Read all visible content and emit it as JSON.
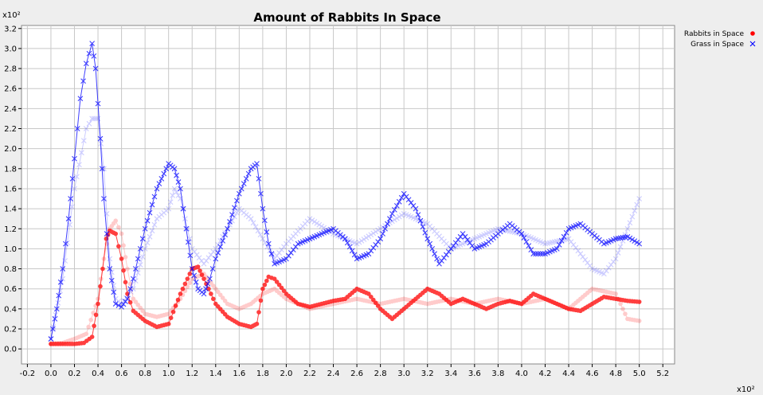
{
  "chart_data": {
    "type": "scatter",
    "title": "Amount of Rabbits In Space",
    "x_multiplier_label": "x10²",
    "y_multiplier_label": "x10²",
    "xlim": [
      -0.25,
      5.3
    ],
    "ylim": [
      -0.15,
      3.23
    ],
    "x_ticks": [
      "-0.2",
      "0.0",
      "0.2",
      "0.4",
      "0.6",
      "0.8",
      "1.0",
      "1.2",
      "1.4",
      "1.6",
      "1.8",
      "2.0",
      "2.2",
      "2.4",
      "2.6",
      "2.8",
      "3.0",
      "3.2",
      "3.4",
      "3.6",
      "3.8",
      "4.0",
      "4.2",
      "4.4",
      "4.6",
      "4.8",
      "5.0",
      "5.2"
    ],
    "y_ticks": [
      "0.0",
      "0.2",
      "0.4",
      "0.6",
      "0.8",
      "1.0",
      "1.2",
      "1.4",
      "1.6",
      "1.8",
      "2.0",
      "2.2",
      "2.4",
      "2.6",
      "2.8",
      "3.0",
      "3.2"
    ],
    "grid": true,
    "legend_position": "right",
    "series": [
      {
        "name": "Rabbits in Space",
        "color": "#ff0000",
        "marker": "circle",
        "x": [
          0,
          0.1,
          0.2,
          0.28,
          0.35,
          0.4,
          0.44,
          0.47,
          0.5,
          0.55,
          0.6,
          0.65,
          0.7,
          0.8,
          0.9,
          1.0,
          1.1,
          1.2,
          1.25,
          1.3,
          1.4,
          1.5,
          1.6,
          1.7,
          1.75,
          1.8,
          1.85,
          1.9,
          2.0,
          2.1,
          2.2,
          2.3,
          2.4,
          2.5,
          2.6,
          2.7,
          2.8,
          2.9,
          3.0,
          3.1,
          3.2,
          3.3,
          3.4,
          3.5,
          3.6,
          3.7,
          3.8,
          3.9,
          4.0,
          4.1,
          4.2,
          4.3,
          4.4,
          4.5,
          4.6,
          4.7,
          4.8,
          4.9,
          5.0
        ],
        "y": [
          0.05,
          0.05,
          0.05,
          0.06,
          0.12,
          0.45,
          0.8,
          1.1,
          1.18,
          1.15,
          0.9,
          0.55,
          0.38,
          0.28,
          0.22,
          0.25,
          0.55,
          0.8,
          0.82,
          0.7,
          0.45,
          0.32,
          0.25,
          0.22,
          0.25,
          0.6,
          0.72,
          0.7,
          0.55,
          0.45,
          0.42,
          0.45,
          0.48,
          0.5,
          0.6,
          0.55,
          0.4,
          0.3,
          0.4,
          0.5,
          0.6,
          0.55,
          0.45,
          0.5,
          0.45,
          0.4,
          0.45,
          0.48,
          0.45,
          0.55,
          0.5,
          0.45,
          0.4,
          0.38,
          0.45,
          0.52,
          0.5,
          0.48,
          0.47
        ]
      },
      {
        "name": "Grass in Space",
        "color": "#0000ff",
        "marker": "x",
        "x": [
          0,
          0.05,
          0.1,
          0.15,
          0.2,
          0.25,
          0.3,
          0.35,
          0.38,
          0.42,
          0.45,
          0.5,
          0.55,
          0.6,
          0.65,
          0.7,
          0.8,
          0.9,
          1.0,
          1.05,
          1.1,
          1.15,
          1.2,
          1.25,
          1.3,
          1.35,
          1.4,
          1.5,
          1.6,
          1.7,
          1.75,
          1.8,
          1.85,
          1.9,
          2.0,
          2.1,
          2.2,
          2.3,
          2.4,
          2.5,
          2.6,
          2.7,
          2.8,
          2.9,
          3.0,
          3.1,
          3.2,
          3.3,
          3.4,
          3.5,
          3.6,
          3.7,
          3.8,
          3.9,
          4.0,
          4.1,
          4.2,
          4.3,
          4.4,
          4.5,
          4.6,
          4.7,
          4.8,
          4.9,
          5.0
        ],
        "y": [
          0.1,
          0.4,
          0.8,
          1.3,
          1.9,
          2.5,
          2.85,
          3.05,
          2.8,
          2.1,
          1.5,
          0.8,
          0.45,
          0.42,
          0.5,
          0.7,
          1.2,
          1.6,
          1.85,
          1.8,
          1.6,
          1.2,
          0.8,
          0.6,
          0.55,
          0.7,
          0.9,
          1.2,
          1.55,
          1.8,
          1.85,
          1.4,
          1.05,
          0.85,
          0.9,
          1.05,
          1.1,
          1.15,
          1.2,
          1.1,
          0.9,
          0.95,
          1.1,
          1.35,
          1.55,
          1.4,
          1.1,
          0.85,
          1.0,
          1.15,
          1.0,
          1.05,
          1.15,
          1.25,
          1.15,
          0.95,
          0.95,
          1.0,
          1.2,
          1.25,
          1.15,
          1.05,
          1.1,
          1.12,
          1.05
        ]
      }
    ],
    "faint_series": [
      {
        "color": "#ff0000",
        "marker": "circle",
        "x": [
          0,
          0.1,
          0.2,
          0.3,
          0.4,
          0.45,
          0.5,
          0.55,
          0.6,
          0.65,
          0.7,
          0.8,
          0.9,
          1.0,
          1.1,
          1.2,
          1.3,
          1.4,
          1.5,
          1.6,
          1.7,
          1.8,
          1.9,
          2.0,
          2.2,
          2.4,
          2.6,
          2.8,
          3.0,
          3.2,
          3.4,
          3.6,
          3.8,
          4.0,
          4.2,
          4.4,
          4.6,
          4.8,
          4.9,
          5.0
        ],
        "y": [
          0.05,
          0.06,
          0.1,
          0.15,
          0.5,
          0.9,
          1.2,
          1.28,
          1.15,
          0.8,
          0.5,
          0.35,
          0.32,
          0.35,
          0.5,
          0.7,
          0.75,
          0.6,
          0.45,
          0.4,
          0.45,
          0.55,
          0.6,
          0.5,
          0.4,
          0.45,
          0.5,
          0.45,
          0.5,
          0.45,
          0.5,
          0.45,
          0.5,
          0.45,
          0.5,
          0.4,
          0.6,
          0.55,
          0.3,
          0.28
        ]
      },
      {
        "color": "#0000ff",
        "marker": "x",
        "x": [
          0,
          0.1,
          0.2,
          0.3,
          0.35,
          0.4,
          0.45,
          0.5,
          0.55,
          0.6,
          0.7,
          0.8,
          0.9,
          1.0,
          1.05,
          1.1,
          1.2,
          1.3,
          1.4,
          1.5,
          1.6,
          1.7,
          1.8,
          1.9,
          2.0,
          2.2,
          2.4,
          2.6,
          2.8,
          3.0,
          3.2,
          3.4,
          3.6,
          3.8,
          4.0,
          4.2,
          4.4,
          4.6,
          4.7,
          4.8,
          4.9,
          5.0
        ],
        "y": [
          0.1,
          0.7,
          1.6,
          2.2,
          2.3,
          2.3,
          1.8,
          0.9,
          0.5,
          0.45,
          0.6,
          1.0,
          1.3,
          1.4,
          1.6,
          1.5,
          1.0,
          0.85,
          1.0,
          1.2,
          1.4,
          1.3,
          1.1,
          0.9,
          1.05,
          1.3,
          1.15,
          1.05,
          1.2,
          1.35,
          1.25,
          1.0,
          1.1,
          1.2,
          1.15,
          1.05,
          1.1,
          0.8,
          0.75,
          0.9,
          1.2,
          1.5
        ]
      }
    ]
  }
}
